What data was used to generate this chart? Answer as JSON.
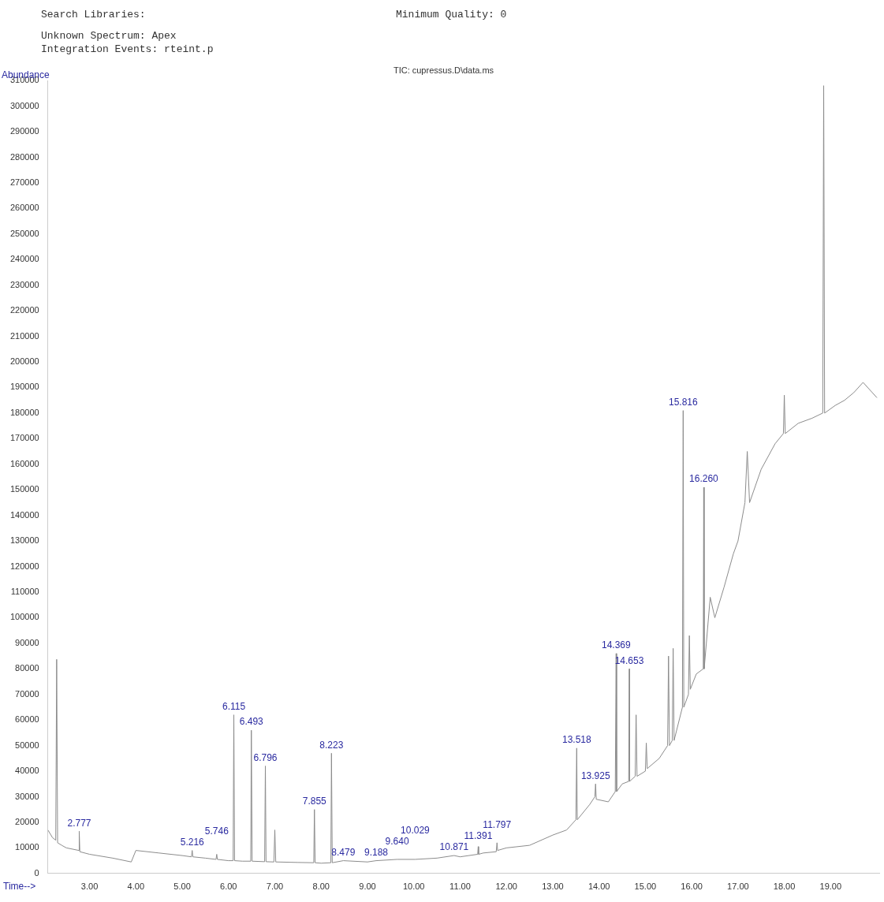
{
  "chart_data": {
    "type": "line",
    "title": "TIC: cupressus.D\\data.ms",
    "xlabel": "Time-->",
    "ylabel": "Abundance",
    "annotations": [
      "Search Libraries:",
      "Minimum Quality: 0",
      "Unknown Spectrum: Apex",
      "Integration Events: rteint.p",
      {
        "text": "2.777",
        "x": 2.777,
        "y": 16500
      },
      {
        "text": "5.216",
        "x": 5.216,
        "y": 9000
      },
      {
        "text": "5.746",
        "x": 5.746,
        "y": 7500
      },
      {
        "text": "6.115",
        "x": 6.115,
        "y": 62000
      },
      {
        "text": "6.493",
        "x": 6.493,
        "y": 56000
      },
      {
        "text": "6.796",
        "x": 6.796,
        "y": 42000
      },
      {
        "text": "7.855",
        "x": 7.855,
        "y": 25000
      },
      {
        "text": "8.223",
        "x": 8.223,
        "y": 47000
      },
      {
        "text": "8.479",
        "x": 8.479,
        "y": 5000
      },
      {
        "text": "9.188",
        "x": 9.188,
        "y": 5000
      },
      {
        "text": "9.640",
        "x": 9.64,
        "y": 5500
      },
      {
        "text": "10.029",
        "x": 10.029,
        "y": 5500
      },
      {
        "text": "10.871",
        "x": 10.871,
        "y": 7000
      },
      {
        "text": "11.391",
        "x": 11.391,
        "y": 10500
      },
      {
        "text": "11.797",
        "x": 11.797,
        "y": 12000
      },
      {
        "text": "13.518",
        "x": 13.518,
        "y": 49000
      },
      {
        "text": "13.925",
        "x": 13.925,
        "y": 35000
      },
      {
        "text": "14.369",
        "x": 14.369,
        "y": 86000
      },
      {
        "text": "14.653",
        "x": 14.653,
        "y": 80000
      },
      {
        "text": "15.816",
        "x": 15.816,
        "y": 181000
      },
      {
        "text": "16.260",
        "x": 16.26,
        "y": 151000
      }
    ],
    "x": [
      2.1,
      2.2,
      2.27,
      2.29,
      2.31,
      2.4,
      2.5,
      2.77,
      2.777,
      2.79,
      3.0,
      3.5,
      3.9,
      4.0,
      4.5,
      5.0,
      5.2,
      5.216,
      5.23,
      5.5,
      5.73,
      5.746,
      5.76,
      6.0,
      6.1,
      6.115,
      6.13,
      6.3,
      6.48,
      6.493,
      6.51,
      6.78,
      6.796,
      6.81,
      6.98,
      7.0,
      7.02,
      7.5,
      7.84,
      7.855,
      7.87,
      8.0,
      8.21,
      8.223,
      8.24,
      8.479,
      9.0,
      9.188,
      9.64,
      10.029,
      10.5,
      10.871,
      11.0,
      11.38,
      11.391,
      11.4,
      11.5,
      11.78,
      11.797,
      11.81,
      12.0,
      12.5,
      13.0,
      13.3,
      13.5,
      13.518,
      13.53,
      13.8,
      13.91,
      13.925,
      13.94,
      14.2,
      14.35,
      14.369,
      14.38,
      14.5,
      14.64,
      14.653,
      14.66,
      14.78,
      14.8,
      14.82,
      15.0,
      15.02,
      15.04,
      15.3,
      15.48,
      15.5,
      15.52,
      15.58,
      15.6,
      15.62,
      15.8,
      15.816,
      15.83,
      15.93,
      15.95,
      15.97,
      16.1,
      16.25,
      16.26,
      16.27,
      16.4,
      16.5,
      16.7,
      16.9,
      17.0,
      17.15,
      17.2,
      17.25,
      17.5,
      17.8,
      17.98,
      18.0,
      18.02,
      18.3,
      18.6,
      18.83,
      18.85,
      18.87,
      19.1,
      19.3,
      19.5,
      19.7,
      19.9,
      20.0
    ],
    "values": [
      17000,
      14000,
      13000,
      83700,
      12000,
      11000,
      10000,
      9000,
      16500,
      8500,
      7500,
      6000,
      4500,
      9000,
      8000,
      7000,
      6500,
      9000,
      6500,
      6000,
      5500,
      7500,
      5500,
      5000,
      5000,
      62000,
      5000,
      4800,
      4800,
      56000,
      4800,
      4600,
      42000,
      4600,
      4500,
      17000,
      4500,
      4300,
      4200,
      25000,
      4200,
      4000,
      4200,
      47000,
      4200,
      5000,
      4500,
      5000,
      5500,
      5500,
      6000,
      7000,
      6500,
      7500,
      10500,
      7500,
      8000,
      8500,
      12000,
      9000,
      10000,
      11000,
      15000,
      17000,
      21000,
      49000,
      21000,
      27000,
      30000,
      35000,
      29000,
      28000,
      32000,
      86000,
      32000,
      35000,
      36000,
      80000,
      36000,
      38000,
      62000,
      38000,
      40000,
      51000,
      41000,
      45000,
      50000,
      85000,
      50000,
      52000,
      88000,
      52000,
      65000,
      181000,
      65000,
      70000,
      93000,
      72000,
      78000,
      80000,
      151000,
      80000,
      108000,
      100000,
      112000,
      125000,
      130000,
      145000,
      165000,
      145000,
      158000,
      168000,
      172000,
      187000,
      172000,
      176000,
      178000,
      180000,
      308000,
      180000,
      183000,
      185000,
      188000,
      192000,
      188000,
      186000
    ],
    "color": "#8c8c8c",
    "xlim": [
      2.1,
      20.05
    ],
    "xticks": [
      {
        "value": 3,
        "label": "3.00"
      },
      {
        "value": 4,
        "label": "4.00"
      },
      {
        "value": 5,
        "label": "5.00"
      },
      {
        "value": 6,
        "label": "6.00"
      },
      {
        "value": 7,
        "label": "7.00"
      },
      {
        "value": 8,
        "label": "8.00"
      },
      {
        "value": 9,
        "label": "9.00"
      },
      {
        "value": 10,
        "label": "10.00"
      },
      {
        "value": 11,
        "label": "11.00"
      },
      {
        "value": 12,
        "label": "12.00"
      },
      {
        "value": 13,
        "label": "13.00"
      },
      {
        "value": 14,
        "label": "14.00"
      },
      {
        "value": 15,
        "label": "15.00"
      },
      {
        "value": 16,
        "label": "16.00"
      },
      {
        "value": 17,
        "label": "17.00"
      },
      {
        "value": 18,
        "label": "18.00"
      },
      {
        "value": 19,
        "label": "19.00"
      }
    ],
    "ylim": [
      0,
      310000
    ],
    "yticks": [
      0,
      10000,
      20000,
      30000,
      40000,
      50000,
      60000,
      70000,
      80000,
      90000,
      100000,
      110000,
      120000,
      130000,
      140000,
      150000,
      160000,
      170000,
      180000,
      190000,
      200000,
      210000,
      220000,
      230000,
      240000,
      250000,
      260000,
      270000,
      280000,
      290000,
      300000,
      310000
    ],
    "grid": false,
    "legend": false,
    "marker": "none",
    "line_style": "solid"
  }
}
